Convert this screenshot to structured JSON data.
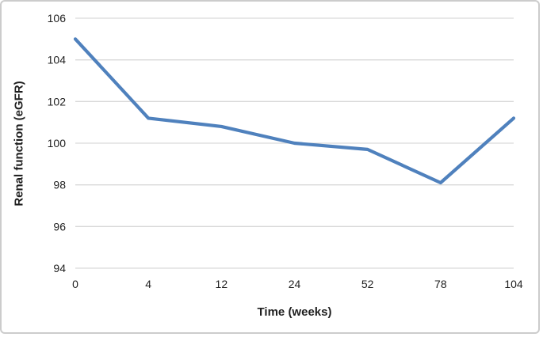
{
  "chart_data": {
    "type": "line",
    "categories": [
      "0",
      "4",
      "12",
      "24",
      "52",
      "78",
      "104"
    ],
    "values": [
      105,
      101.2,
      100.8,
      100,
      99.7,
      98.1,
      101.2
    ],
    "title": "",
    "xlabel": "Time (weeks)",
    "ylabel": "Renal function (eGFR)",
    "ylim": [
      94,
      106
    ],
    "ytick_step": 2,
    "yticks": [
      "94",
      "96",
      "98",
      "100",
      "102",
      "104",
      "106"
    ],
    "grid": true,
    "legend": "none",
    "line_color": "#4F81BD",
    "gridline_color": "#D9D9D9",
    "text_color": "#1F1F1F",
    "frame_border_color": "#CCCCCC",
    "background_color": "#FFFFFF"
  }
}
